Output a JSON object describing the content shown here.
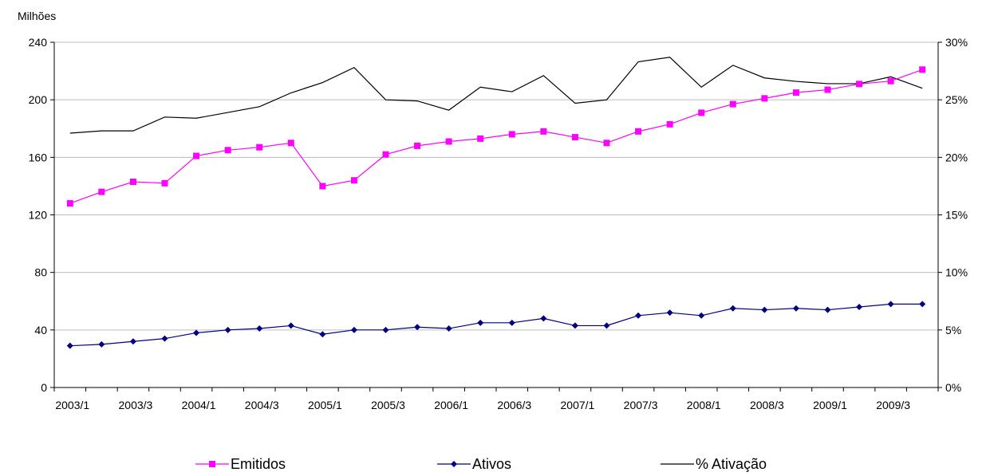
{
  "chart_data": {
    "type": "line",
    "y_unit_label": "Milhões",
    "categories": [
      "2003/1",
      "2003/2",
      "2003/3",
      "2003/4",
      "2004/1",
      "2004/2",
      "2004/3",
      "2004/4",
      "2005/1",
      "2005/2",
      "2005/3",
      "2005/4",
      "2006/1",
      "2006/2",
      "2006/3",
      "2006/4",
      "2007/1",
      "2007/2",
      "2007/3",
      "2007/4",
      "2008/1",
      "2008/2",
      "2008/3",
      "2008/4",
      "2009/1",
      "2009/2",
      "2009/3",
      "2009/4"
    ],
    "x_tick_labels": [
      "2003/1",
      "2003/3",
      "2004/1",
      "2004/3",
      "2005/1",
      "2005/3",
      "2006/1",
      "2006/3",
      "2007/1",
      "2007/3",
      "2008/1",
      "2008/3",
      "2009/1",
      "2009/3"
    ],
    "y_left": {
      "min": 0,
      "max": 240,
      "ticks": [
        0,
        40,
        80,
        120,
        160,
        200,
        240
      ]
    },
    "y_right": {
      "min": 0,
      "max": 30,
      "ticks": [
        "0%",
        "5%",
        "10%",
        "15%",
        "20%",
        "25%",
        "30%"
      ]
    },
    "grid": "horizontal",
    "legend_position": "bottom",
    "series": [
      {
        "name": "Emitidos",
        "axis": "left",
        "color": "#ff00ff",
        "marker": "square",
        "values": [
          128,
          136,
          143,
          142,
          161,
          165,
          167,
          170,
          140,
          144,
          162,
          168,
          171,
          173,
          176,
          178,
          174,
          170,
          178,
          183,
          191,
          197,
          201,
          205,
          207,
          211,
          213,
          221
        ]
      },
      {
        "name": "Ativos",
        "axis": "left",
        "color": "#000080",
        "marker": "diamond",
        "values": [
          29,
          30,
          32,
          34,
          38,
          40,
          41,
          43,
          37,
          40,
          40,
          42,
          41,
          45,
          45,
          48,
          43,
          43,
          50,
          52,
          50,
          55,
          54,
          55,
          54,
          56,
          58,
          58
        ]
      },
      {
        "name": "% Ativação",
        "axis": "right",
        "color": "#000000",
        "marker": "none",
        "values": [
          22.1,
          22.3,
          22.3,
          23.5,
          23.4,
          23.9,
          24.4,
          25.6,
          26.5,
          27.8,
          25.0,
          24.9,
          24.1,
          26.1,
          25.7,
          27.1,
          24.7,
          25.0,
          28.3,
          28.7,
          26.1,
          28.0,
          26.9,
          26.6,
          26.4,
          26.4,
          27.0,
          26.0
        ]
      }
    ]
  }
}
